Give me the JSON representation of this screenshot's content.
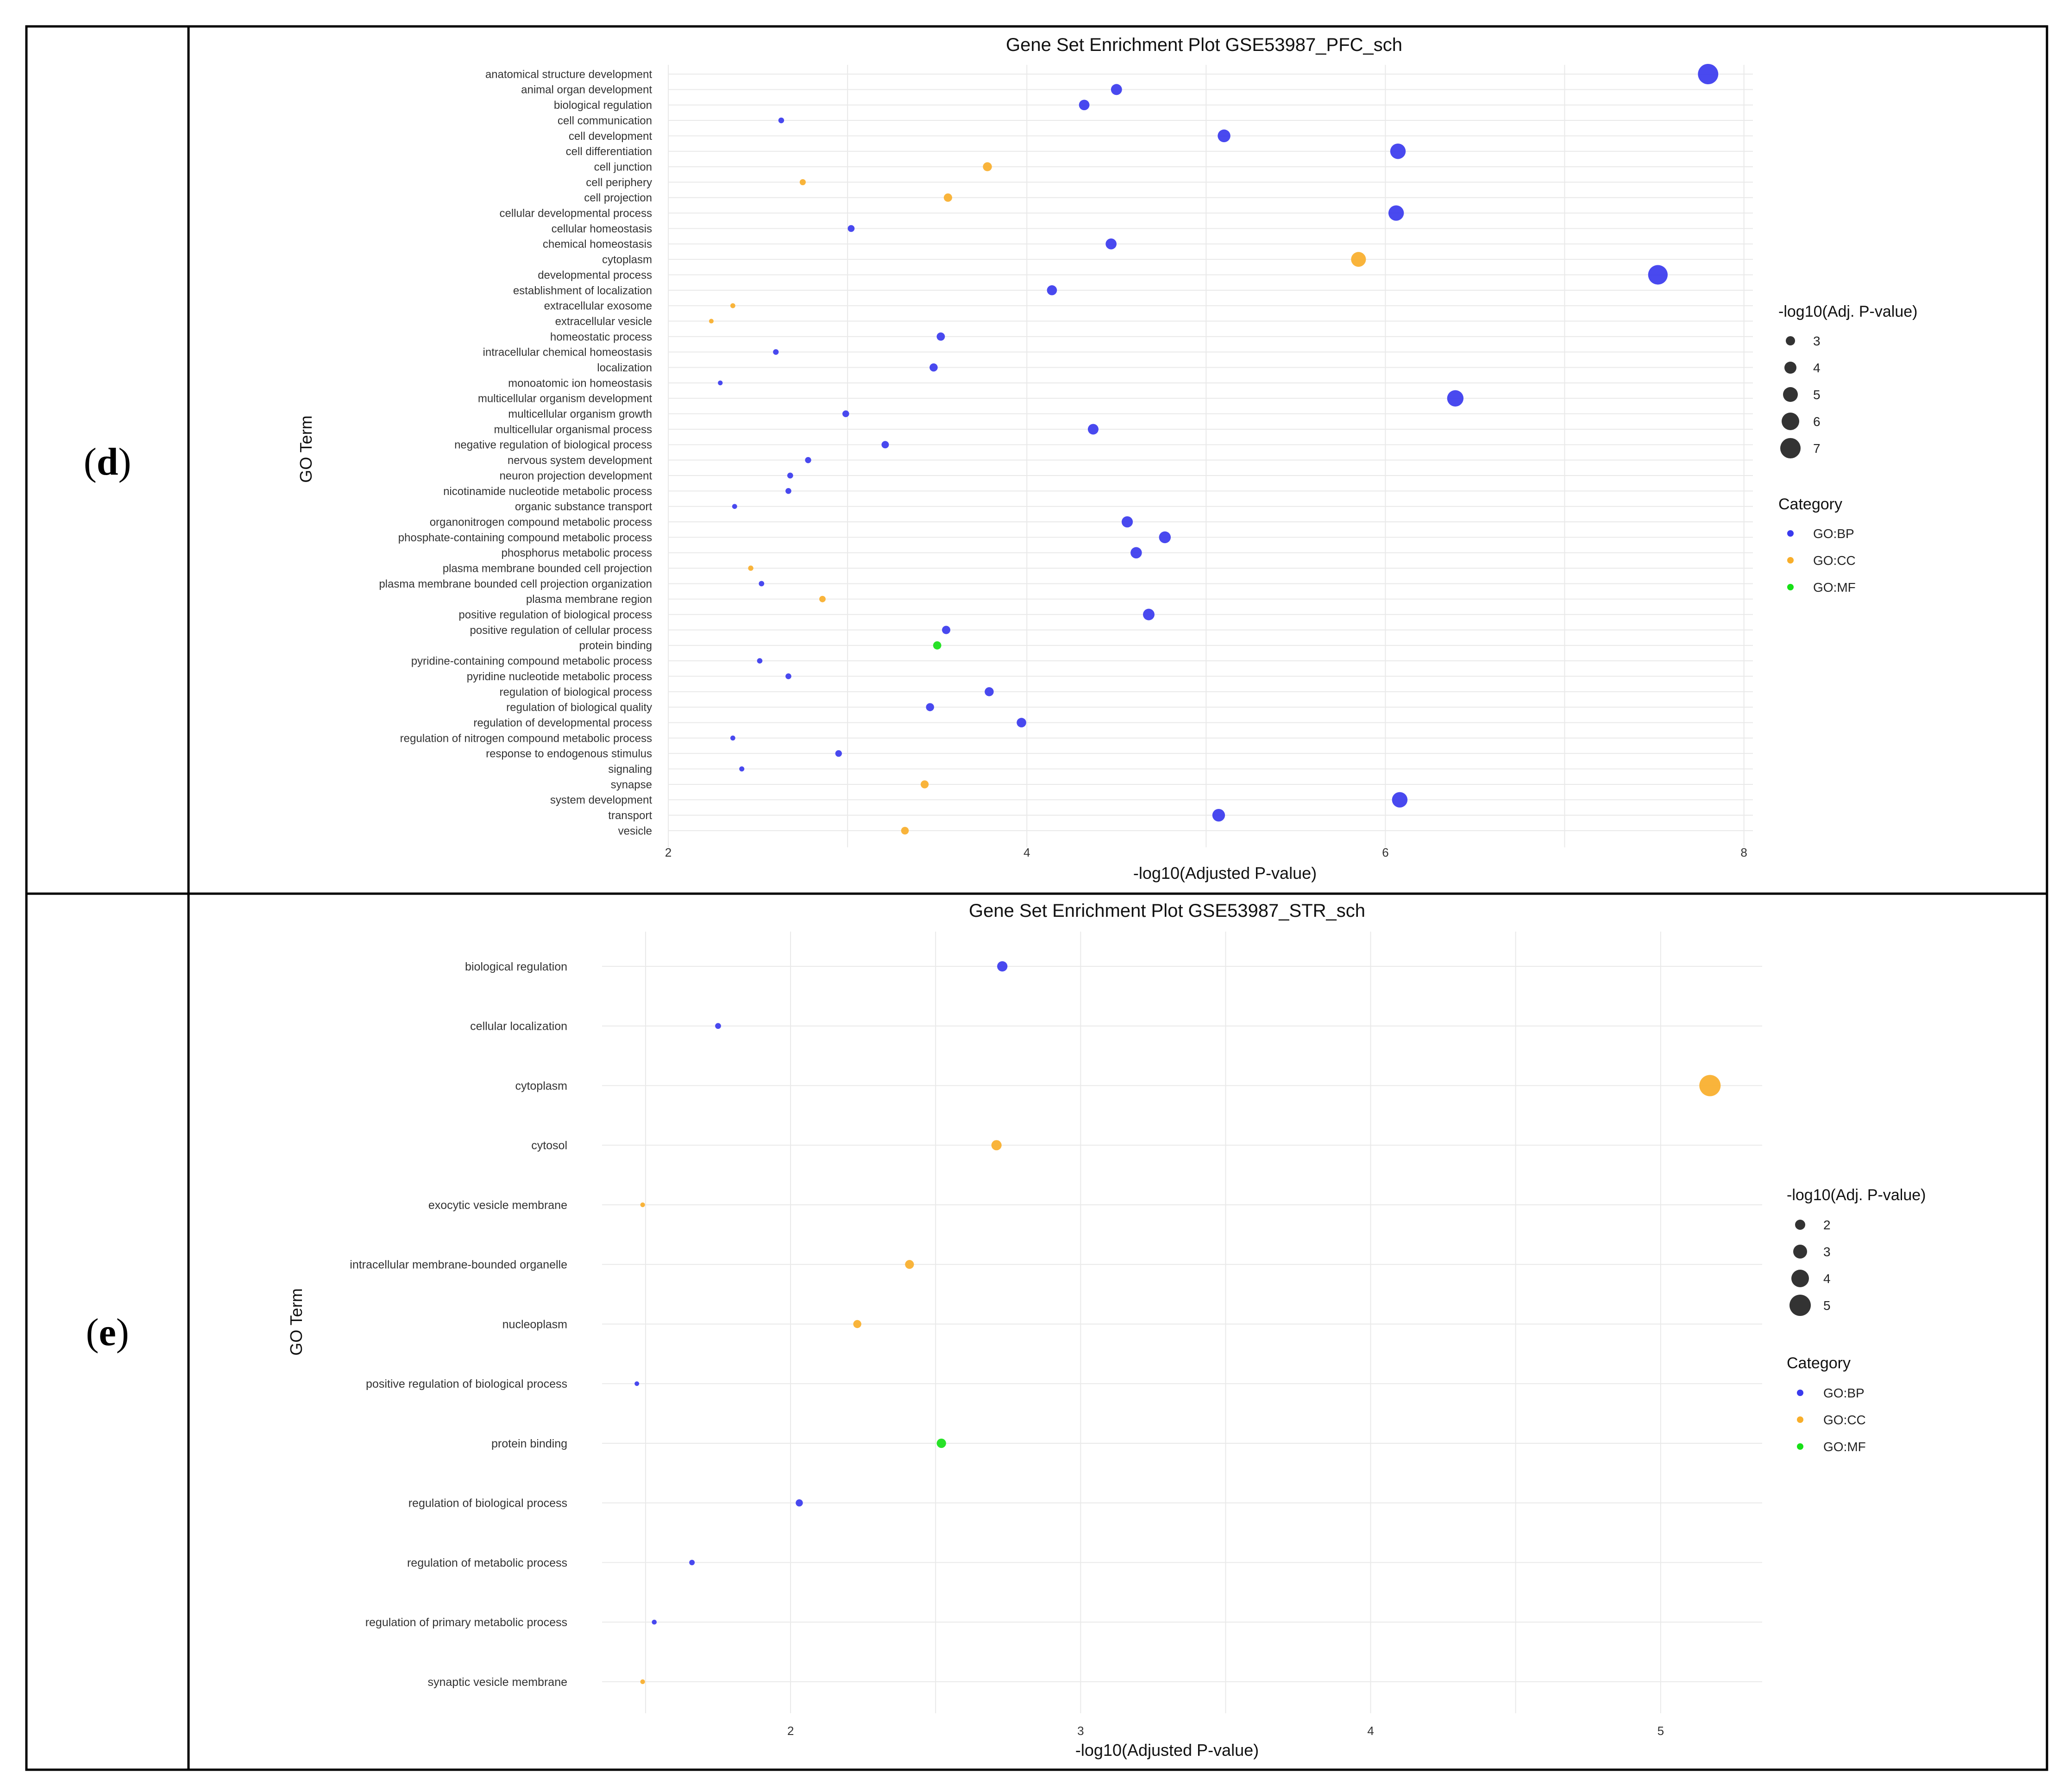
{
  "panels": [
    {
      "label": "d"
    },
    {
      "label": "e"
    }
  ],
  "colors": {
    "GO:BP": "#3a3aee",
    "GO:CC": "#f8ae2a",
    "GO:MF": "#16e016",
    "size_legend": "#333333"
  },
  "chart_data": [
    {
      "type": "scatter",
      "title": "Gene Set Enrichment Plot GSE53987_PFC_sch",
      "xlabel": "-log10(Adjusted P-value)",
      "ylabel": "GO Term",
      "xlim": [
        2.0,
        8.05
      ],
      "xticks": [
        2,
        4,
        6,
        8
      ],
      "size_legend": {
        "title": "-log10(Adj. P-value)",
        "values": [
          3,
          4,
          5,
          6,
          7
        ]
      },
      "color_legend": {
        "title": "Category",
        "items": [
          "GO:BP",
          "GO:CC",
          "GO:MF"
        ]
      },
      "points": [
        {
          "term": "anatomical structure development",
          "x": 7.8,
          "category": "GO:BP"
        },
        {
          "term": "animal organ development",
          "x": 4.5,
          "category": "GO:BP"
        },
        {
          "term": "biological regulation",
          "x": 4.32,
          "category": "GO:BP"
        },
        {
          "term": "cell communication",
          "x": 2.63,
          "category": "GO:BP"
        },
        {
          "term": "cell development",
          "x": 5.1,
          "category": "GO:BP"
        },
        {
          "term": "cell differentiation",
          "x": 6.07,
          "category": "GO:BP"
        },
        {
          "term": "cell junction",
          "x": 3.78,
          "category": "GO:CC"
        },
        {
          "term": "cell periphery",
          "x": 2.75,
          "category": "GO:CC"
        },
        {
          "term": "cell projection",
          "x": 3.56,
          "category": "GO:CC"
        },
        {
          "term": "cellular developmental process",
          "x": 6.06,
          "category": "GO:BP"
        },
        {
          "term": "cellular homeostasis",
          "x": 3.02,
          "category": "GO:BP"
        },
        {
          "term": "chemical homeostasis",
          "x": 4.47,
          "category": "GO:BP"
        },
        {
          "term": "cytoplasm",
          "x": 5.85,
          "category": "GO:CC"
        },
        {
          "term": "developmental process",
          "x": 7.52,
          "category": "GO:BP"
        },
        {
          "term": "establishment of localization",
          "x": 4.14,
          "category": "GO:BP"
        },
        {
          "term": "extracellular exosome",
          "x": 2.36,
          "category": "GO:CC"
        },
        {
          "term": "extracellular vesicle",
          "x": 2.24,
          "category": "GO:CC"
        },
        {
          "term": "homeostatic process",
          "x": 3.52,
          "category": "GO:BP"
        },
        {
          "term": "intracellular chemical homeostasis",
          "x": 2.6,
          "category": "GO:BP"
        },
        {
          "term": "localization",
          "x": 3.48,
          "category": "GO:BP"
        },
        {
          "term": "monoatomic ion homeostasis",
          "x": 2.29,
          "category": "GO:BP"
        },
        {
          "term": "multicellular organism development",
          "x": 6.39,
          "category": "GO:BP"
        },
        {
          "term": "multicellular organism growth",
          "x": 2.99,
          "category": "GO:BP"
        },
        {
          "term": "multicellular organismal process",
          "x": 4.37,
          "category": "GO:BP"
        },
        {
          "term": "negative regulation of biological process",
          "x": 3.21,
          "category": "GO:BP"
        },
        {
          "term": "nervous system development",
          "x": 2.78,
          "category": "GO:BP"
        },
        {
          "term": "neuron projection development",
          "x": 2.68,
          "category": "GO:BP"
        },
        {
          "term": "nicotinamide nucleotide metabolic process",
          "x": 2.67,
          "category": "GO:BP"
        },
        {
          "term": "organic substance transport",
          "x": 2.37,
          "category": "GO:BP"
        },
        {
          "term": "organonitrogen compound metabolic process",
          "x": 4.56,
          "category": "GO:BP"
        },
        {
          "term": "phosphate-containing compound metabolic process",
          "x": 4.77,
          "category": "GO:BP"
        },
        {
          "term": "phosphorus metabolic process",
          "x": 4.61,
          "category": "GO:BP"
        },
        {
          "term": "plasma membrane bounded cell projection",
          "x": 2.46,
          "category": "GO:CC"
        },
        {
          "term": "plasma membrane bounded cell projection organization",
          "x": 2.52,
          "category": "GO:BP"
        },
        {
          "term": "plasma membrane region",
          "x": 2.86,
          "category": "GO:CC"
        },
        {
          "term": "positive regulation of biological process",
          "x": 4.68,
          "category": "GO:BP"
        },
        {
          "term": "positive regulation of cellular process",
          "x": 3.55,
          "category": "GO:BP"
        },
        {
          "term": "protein binding",
          "x": 3.5,
          "category": "GO:MF"
        },
        {
          "term": "pyridine-containing compound metabolic process",
          "x": 2.51,
          "category": "GO:BP"
        },
        {
          "term": "pyridine nucleotide metabolic process",
          "x": 2.67,
          "category": "GO:BP"
        },
        {
          "term": "regulation of biological process",
          "x": 3.79,
          "category": "GO:BP"
        },
        {
          "term": "regulation of biological quality",
          "x": 3.46,
          "category": "GO:BP"
        },
        {
          "term": "regulation of developmental process",
          "x": 3.97,
          "category": "GO:BP"
        },
        {
          "term": "regulation of nitrogen compound metabolic process",
          "x": 2.36,
          "category": "GO:BP"
        },
        {
          "term": "response to endogenous stimulus",
          "x": 2.95,
          "category": "GO:BP"
        },
        {
          "term": "signaling",
          "x": 2.41,
          "category": "GO:BP"
        },
        {
          "term": "synapse",
          "x": 3.43,
          "category": "GO:CC"
        },
        {
          "term": "system development",
          "x": 6.08,
          "category": "GO:BP"
        },
        {
          "term": "transport",
          "x": 5.07,
          "category": "GO:BP"
        },
        {
          "term": "vesicle",
          "x": 3.32,
          "category": "GO:CC"
        }
      ]
    },
    {
      "type": "scatter",
      "title": "Gene Set Enrichment Plot GSE53987_STR_sch",
      "xlabel": "-log10(Adjusted P-value)",
      "ylabel": "GO Term",
      "xlim": [
        1.35,
        5.35
      ],
      "xticks": [
        2,
        3,
        4,
        5
      ],
      "size_legend": {
        "title": "-log10(Adj. P-value)",
        "values": [
          2,
          3,
          4,
          5
        ]
      },
      "color_legend": {
        "title": "Category",
        "items": [
          "GO:BP",
          "GO:CC",
          "GO:MF"
        ]
      },
      "points": [
        {
          "term": "biological regulation",
          "x": 2.73,
          "category": "GO:BP"
        },
        {
          "term": "cellular localization",
          "x": 1.75,
          "category": "GO:BP"
        },
        {
          "term": "cytoplasm",
          "x": 5.17,
          "category": "GO:CC"
        },
        {
          "term": "cytosol",
          "x": 2.71,
          "category": "GO:CC"
        },
        {
          "term": "exocytic vesicle membrane",
          "x": 1.49,
          "category": "GO:CC"
        },
        {
          "term": "intracellular membrane-bounded organelle",
          "x": 2.41,
          "category": "GO:CC"
        },
        {
          "term": "nucleoplasm",
          "x": 2.23,
          "category": "GO:CC"
        },
        {
          "term": "positive regulation of biological process",
          "x": 1.47,
          "category": "GO:BP"
        },
        {
          "term": "protein binding",
          "x": 2.52,
          "category": "GO:MF"
        },
        {
          "term": "regulation of biological process",
          "x": 2.03,
          "category": "GO:BP"
        },
        {
          "term": "regulation of metabolic process",
          "x": 1.66,
          "category": "GO:BP"
        },
        {
          "term": "regulation of primary metabolic process",
          "x": 1.53,
          "category": "GO:BP"
        },
        {
          "term": "synaptic vesicle membrane",
          "x": 1.49,
          "category": "GO:CC"
        }
      ]
    }
  ]
}
